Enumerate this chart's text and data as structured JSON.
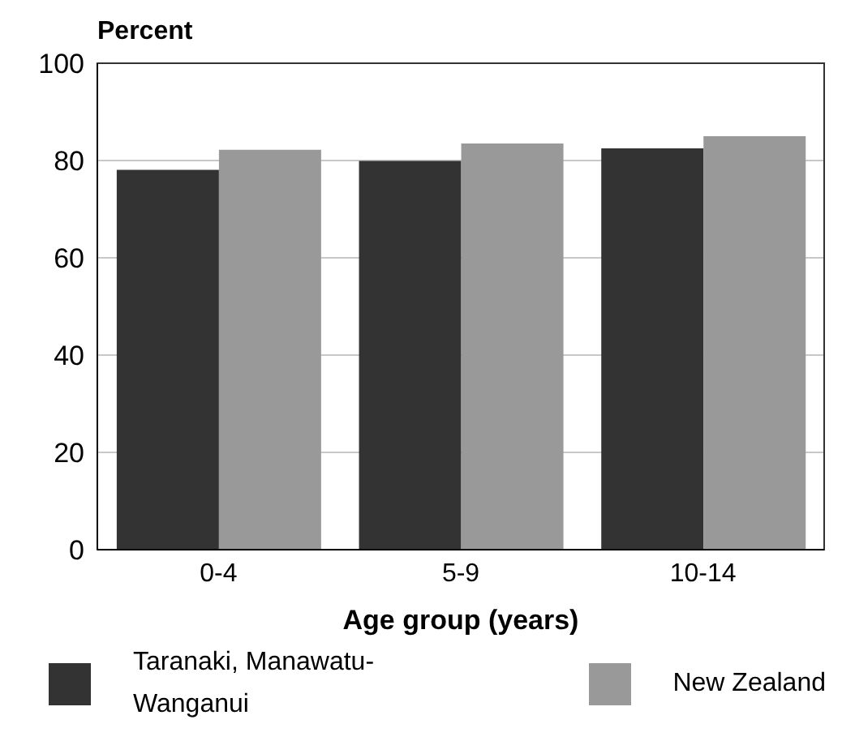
{
  "chart_data": {
    "type": "bar",
    "ylabel": "Percent",
    "xlabel": "Age group (years)",
    "categories": [
      "0-4",
      "5-9",
      "10-14"
    ],
    "series": [
      {
        "name": "Taranaki, Manawatu-Wanganui",
        "color": "#333333",
        "values": [
          78.1,
          79.9,
          82.5
        ]
      },
      {
        "name": "New Zealand",
        "color": "#999999",
        "values": [
          82.2,
          83.5,
          85
        ]
      }
    ],
    "ylim": [
      0,
      100
    ],
    "yticks": [
      0,
      20,
      40,
      60,
      80,
      100
    ],
    "grid": "y",
    "legend": "bottom"
  }
}
